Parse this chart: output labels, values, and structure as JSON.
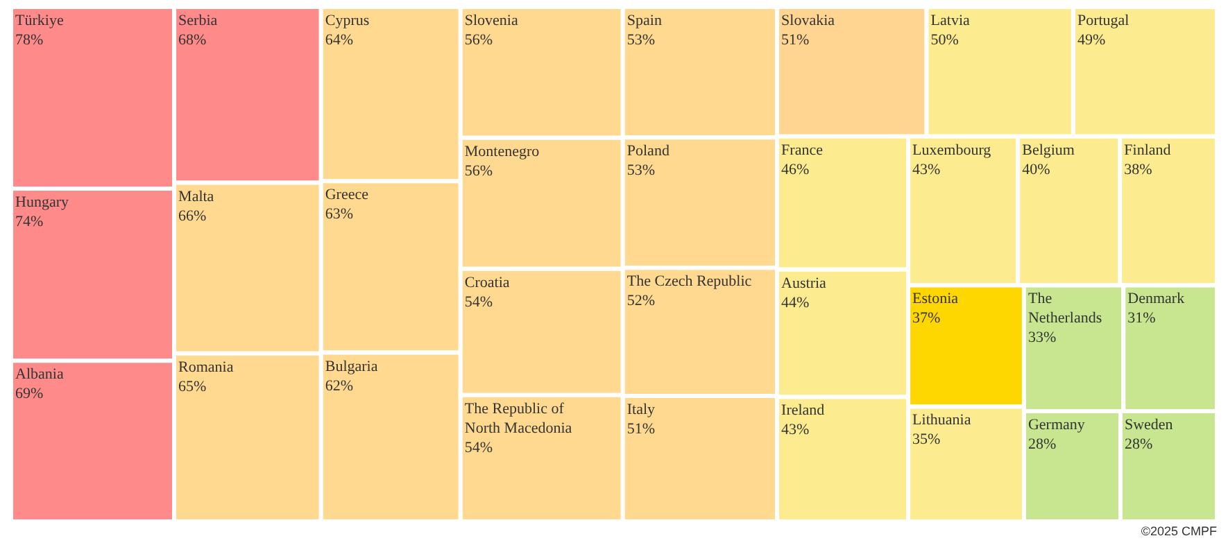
{
  "chart_data": {
    "type": "other",
    "categories": [
      "Türkiye",
      "Hungary",
      "Albania",
      "Serbia",
      "Malta",
      "Romania",
      "Cyprus",
      "Greece",
      "Bulgaria",
      "Slovenia",
      "Montenegro",
      "Croatia",
      "The Republic of North Macedonia",
      "Spain",
      "Poland",
      "The Czech Republic",
      "Italy",
      "Slovakia",
      "Latvia",
      "Portugal",
      "France",
      "Austria",
      "Ireland",
      "Luxembourg",
      "Belgium",
      "Finland",
      "Estonia",
      "Lithuania",
      "The Netherlands",
      "Denmark",
      "Germany",
      "Sweden"
    ],
    "values": [
      78,
      74,
      69,
      68,
      66,
      65,
      64,
      63,
      62,
      56,
      56,
      54,
      54,
      53,
      53,
      52,
      51,
      51,
      50,
      49,
      46,
      44,
      43,
      43,
      40,
      38,
      37,
      35,
      33,
      31,
      28,
      28
    ],
    "value_labels": [
      "78%",
      "74%",
      "69%",
      "68%",
      "66%",
      "65%",
      "64%",
      "63%",
      "62%",
      "56%",
      "56%",
      "54%",
      "54%",
      "53%",
      "53%",
      "52%",
      "51%",
      "51%",
      "50%",
      "49%",
      "46%",
      "44%",
      "43%",
      "43%",
      "40%",
      "38%",
      "37%",
      "35%",
      "33%",
      "31%",
      "28%",
      "28%"
    ],
    "colors": [
      "#ff8a8a",
      "#ff8a8a",
      "#ff8a8a",
      "#ff8a8a",
      "#ffd98f",
      "#ffd98f",
      "#ffd98f",
      "#ffd98f",
      "#ffd98f",
      "#ffd98f",
      "#ffd98f",
      "#ffd98f",
      "#ffd98f",
      "#ffd98f",
      "#ffd98f",
      "#ffd98f",
      "#ffd98f",
      "#ffd591",
      "#fdeb8f",
      "#fdeb8f",
      "#fdeb8f",
      "#fdeb8f",
      "#fdeb8f",
      "#fdeb8f",
      "#fdeb8f",
      "#fdeb8f",
      "#ffd700",
      "#fdeb8f",
      "#c7e68f",
      "#c7e68f",
      "#c7e68f",
      "#c7e68f"
    ],
    "annotations": [
      "©2025 CMPF"
    ]
  }
}
